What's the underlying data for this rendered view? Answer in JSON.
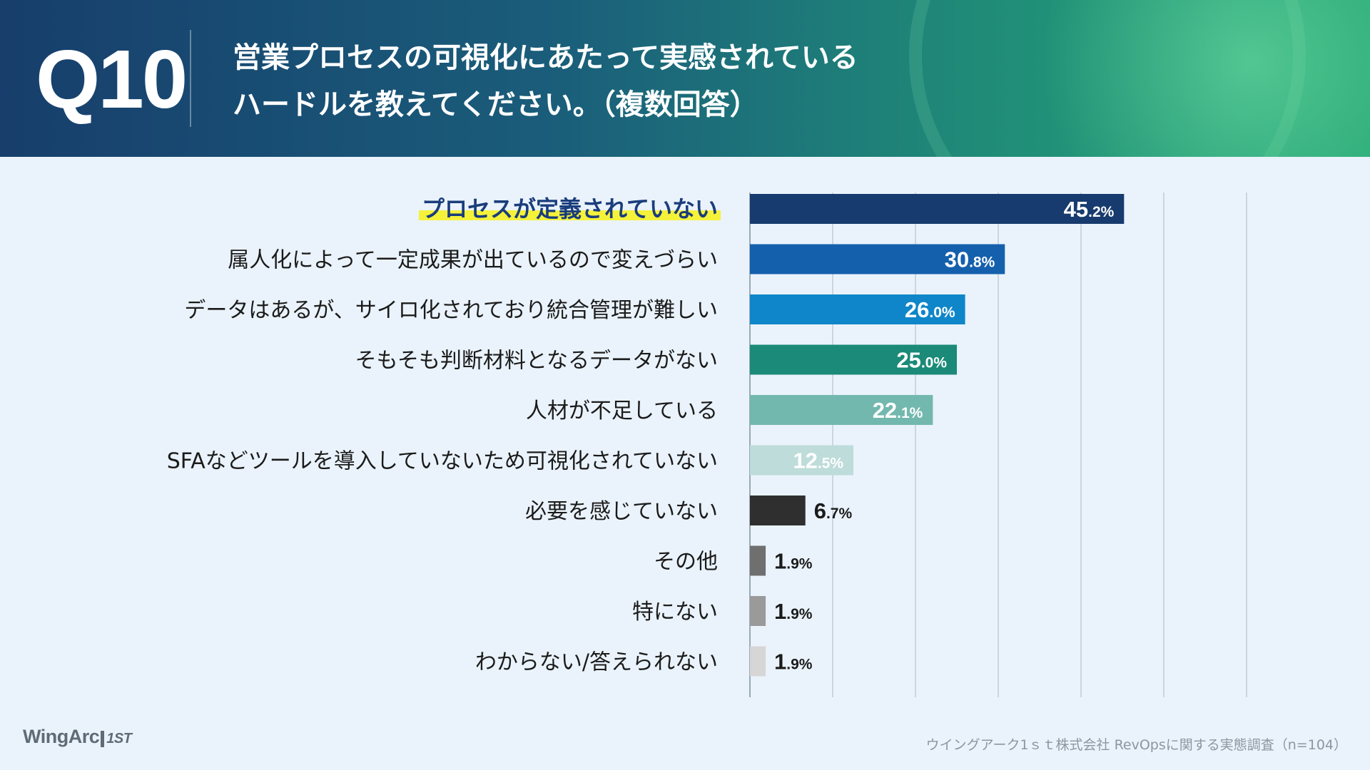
{
  "header": {
    "question_number": "Q10",
    "title_line1": "営業プロセスの可視化にあたって実感されている",
    "title_line2": "ハードルを教えてください。（複数回答）"
  },
  "chart_data": {
    "type": "bar",
    "orientation": "horizontal",
    "title": "営業プロセスの可視化にあたって実感されているハードルを教えてください。（複数回答）",
    "unit": "%",
    "xlim": [
      0,
      60
    ],
    "gridlines": [
      0,
      10,
      20,
      30,
      40,
      50,
      60
    ],
    "categories": [
      "プロセスが定義されていない",
      "属人化によって一定成果が出ているので変えづらい",
      "データはあるが、サイロ化されており統合管理が難しい",
      "そもそも判断材料となるデータがない",
      "人材が不足している",
      "SFAなどツールを導入していないため可視化されていない",
      "必要を感じていない",
      "その他",
      "特にない",
      "わからない/答えられない"
    ],
    "values": [
      45.2,
      30.8,
      26.0,
      25.0,
      22.1,
      12.5,
      6.7,
      1.9,
      1.9,
      1.9
    ],
    "colors": [
      "#173b6e",
      "#1560ad",
      "#0f86c9",
      "#1b8a78",
      "#72b8ae",
      "#bddcda",
      "#2f2f2f",
      "#6f6f6f",
      "#9a9a9a",
      "#d6d6d6"
    ],
    "highlight_index": 0,
    "highlight_color": "#f5f23a"
  },
  "footer": {
    "brand": "WingArc",
    "brand_mark": "1ST",
    "source": "ウイングアーク1ｓｔ株式会社 RevOpsに関する実態調査（n=104）"
  }
}
